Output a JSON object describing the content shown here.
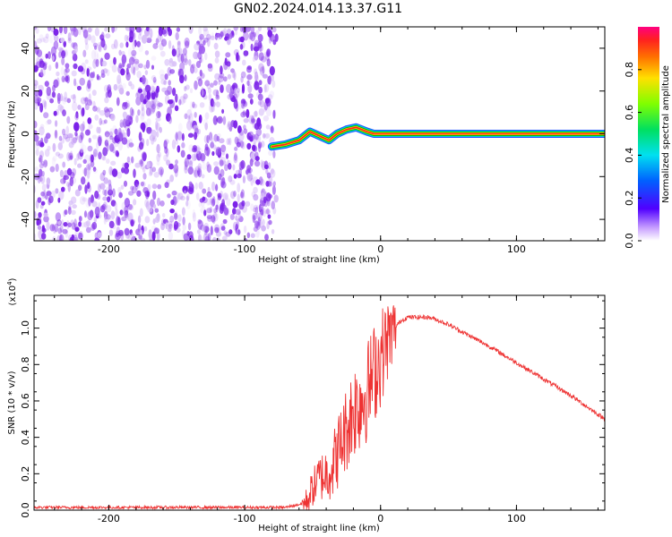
{
  "title": "GN02.2024.014.13.37.G11",
  "colors": {
    "noise": "#7a20e8",
    "snr_line": "#ee3333",
    "ridge_core": "#ff2020",
    "ridge_outer": "#00c000"
  },
  "chart_data": [
    {
      "type": "heatmap",
      "xlabel": "Height of straight line (km)",
      "ylabel": "Frequency (Hz)",
      "xlim": [
        -255,
        165
      ],
      "ylim": [
        -50,
        50
      ],
      "xticks": [
        -200,
        -100,
        0,
        100
      ],
      "yticks": [
        -40,
        -20,
        0,
        20,
        40
      ],
      "xtick_labels": [
        "-200",
        "-100",
        "0",
        "100"
      ],
      "ytick_labels": [
        "-40",
        "-20",
        "0",
        "20",
        "40"
      ],
      "noise_region_x": [
        -255,
        -78
      ],
      "ridge": {
        "x": [
          -80,
          -70,
          -60,
          -52,
          -45,
          -38,
          -32,
          -25,
          -18,
          -10,
          -5,
          0,
          165
        ],
        "y": [
          -6,
          -5,
          -3,
          1,
          -1,
          -3,
          0,
          2,
          3,
          1,
          0,
          0,
          0
        ]
      },
      "colorbar": {
        "label": "Normalized spectral amplitude",
        "ticks": [
          0.0,
          0.2,
          0.4,
          0.6,
          0.8
        ],
        "tick_labels": [
          "0.0",
          "0.2",
          "0.4",
          "0.6",
          "0.8"
        ],
        "range": [
          0,
          1
        ]
      }
    },
    {
      "type": "line",
      "xlabel": "Height of straight line (km)",
      "ylabel": "SNR (10 * v/v)",
      "scale_label": "(x10",
      "scale_exp": "4",
      "scale_close": ")",
      "xlim": [
        -255,
        165
      ],
      "ylim": [
        0,
        1.18
      ],
      "xticks": [
        -200,
        -100,
        0,
        100
      ],
      "yticks": [
        0.0,
        0.2,
        0.4,
        0.6,
        0.8,
        1.0
      ],
      "xtick_labels": [
        "-200",
        "-100",
        "0",
        "100"
      ],
      "ytick_labels": [
        "0.0",
        "0.2",
        "0.4",
        "0.6",
        "0.8",
        "1.0"
      ],
      "series": [
        {
          "x": [
            -255,
            -70,
            -55,
            -50,
            -45,
            -40,
            -35,
            -30,
            -25,
            -20,
            -15,
            -10,
            -5,
            0,
            5,
            10,
            15,
            20,
            25,
            30,
            35,
            40,
            50,
            60,
            80,
            100,
            120,
            140,
            165
          ],
          "y": [
            0.015,
            0.015,
            0.04,
            0.12,
            0.18,
            0.2,
            0.25,
            0.35,
            0.45,
            0.55,
            0.6,
            0.65,
            0.75,
            0.84,
            0.93,
            1.0,
            1.04,
            1.06,
            1.06,
            1.06,
            1.06,
            1.05,
            1.02,
            0.98,
            0.9,
            0.81,
            0.72,
            0.63,
            0.5
          ]
        }
      ]
    }
  ]
}
